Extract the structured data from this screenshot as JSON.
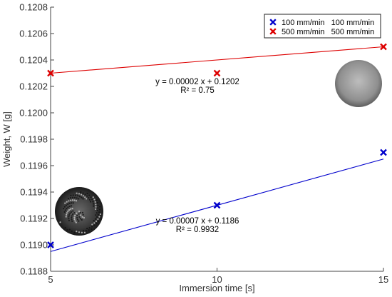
{
  "chart_data": {
    "type": "scatter",
    "title": "",
    "xlabel": "Immersion time [s]",
    "ylabel": "Weight, W [g]",
    "xlim": [
      5,
      15
    ],
    "ylim": [
      0.1188,
      0.1208
    ],
    "xticks": [
      5,
      10,
      15
    ],
    "yticks": [
      0.1188,
      0.119,
      0.1192,
      0.1194,
      0.1196,
      0.1198,
      0.12,
      0.1202,
      0.1204,
      0.1206,
      0.1208
    ],
    "ytick_labels": [
      "0.1188",
      "0.1190",
      "0.1192",
      "0.1194",
      "0.1196",
      "0.1198",
      "0.1200",
      "0.1202",
      "0.1204",
      "0.1206",
      "0.1208"
    ],
    "grid": false,
    "legend_position": "top-right",
    "series": [
      {
        "name": "100 mm/min   100 mm/min",
        "color": "#0000cc",
        "marker": "x",
        "x": [
          5,
          10,
          15
        ],
        "y": [
          0.119,
          0.1193,
          0.1197
        ],
        "fit": {
          "slope": 7e-05,
          "intercept": 0.1186,
          "equation": "y = 0.00007 x + 0.1186",
          "r2": "R² = 0.9932"
        }
      },
      {
        "name": "500 mm/min   500 mm/min",
        "color": "#dd0000",
        "marker": "x",
        "x": [
          5,
          10,
          15
        ],
        "y": [
          0.1203,
          0.1203,
          0.1205
        ],
        "fit": {
          "slope": 2e-05,
          "intercept": 0.1202,
          "equation": "y = 0.00002 x + 0.1202",
          "r2": "R² = 0.75"
        }
      }
    ]
  }
}
